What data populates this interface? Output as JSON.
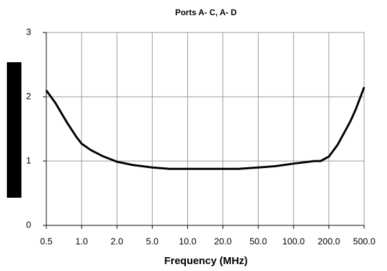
{
  "chart_data": {
    "type": "line",
    "title": "Ports A- C, A- D",
    "x_label": "Frequency (MHz)",
    "x": [
      0.5,
      0.6,
      0.75,
      0.9,
      1.0,
      1.2,
      1.5,
      2.0,
      3.0,
      5.0,
      7.0,
      10.0,
      20.0,
      30.0,
      50.0,
      70.0,
      100.0,
      150.0,
      170.0,
      200.0,
      250.0,
      300.0,
      350.0,
      400.0,
      500.0
    ],
    "series": [
      {
        "color": "#000000",
        "values": [
          2.1,
          1.9,
          1.6,
          1.38,
          1.27,
          1.17,
          1.08,
          0.99,
          0.94,
          0.9,
          0.88,
          0.88,
          0.88,
          0.88,
          0.9,
          0.92,
          0.96,
          1.0,
          1.0,
          1.07,
          1.25,
          1.45,
          1.62,
          1.8,
          2.15
        ]
      }
    ],
    "xlim": [
      0.5,
      500
    ],
    "xticks": [
      0.5,
      {
        "value": 1,
        "label": "1.0"
      },
      {
        "value": 2,
        "label": "2.0"
      },
      {
        "value": 5,
        "label": "5.0"
      },
      {
        "value": 10,
        "label": "10.0"
      },
      {
        "value": 20,
        "label": "20.0"
      },
      {
        "value": 50,
        "label": "50.0"
      },
      {
        "value": 100,
        "label": "100.0"
      },
      {
        "value": 200,
        "label": "200.0"
      },
      {
        "value": 500,
        "label": "500.0"
      }
    ],
    "ylim": [
      0,
      3
    ],
    "yticks": [
      0,
      1,
      2,
      3
    ],
    "grid": true
  }
}
